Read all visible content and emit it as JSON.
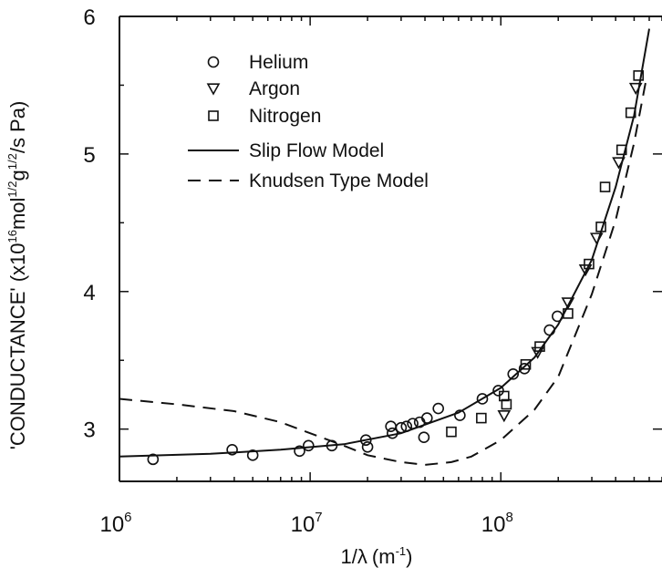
{
  "chart_data": {
    "type": "scatter",
    "xlabel": {
      "base": "1/λ",
      "unit": "(m",
      "unit_exp": "-1",
      "close": ")"
    },
    "ylabel": {
      "prefix": "'CONDUCTANCE' (x10",
      "exp1": "16",
      "part2": "mol",
      "exp2": "1/2",
      "part3": "g",
      "exp3": "1/2",
      "suffix": "/s Pa)"
    },
    "x_scale": "log",
    "xlim": [
      1000000,
      700000000
    ],
    "ylim": [
      2.62,
      6.0
    ],
    "x_ticks": [
      {
        "value": 1000000,
        "base": "10",
        "exp": "6"
      },
      {
        "value": 10000000,
        "base": "10",
        "exp": "7"
      },
      {
        "value": 100000000,
        "base": "10",
        "exp": "8"
      }
    ],
    "y_ticks": [
      {
        "value": 3,
        "label": "3"
      },
      {
        "value": 4,
        "label": "4"
      },
      {
        "value": 5,
        "label": "5"
      },
      {
        "value": 6,
        "label": "6"
      }
    ],
    "grid": false,
    "legend_position": "top-left",
    "series": [
      {
        "name": "Helium",
        "marker": "circle",
        "points": [
          [
            1500000,
            2.78
          ],
          [
            3900000,
            2.85
          ],
          [
            5000000,
            2.81
          ],
          [
            8800000,
            2.84
          ],
          [
            9800000,
            2.88
          ],
          [
            13000000,
            2.88
          ],
          [
            19600000,
            2.92
          ],
          [
            20000000,
            2.87
          ],
          [
            26500000,
            3.02
          ],
          [
            27000000,
            2.97
          ],
          [
            30000000,
            3.01
          ],
          [
            32000000,
            3.02
          ],
          [
            34500000,
            3.04
          ],
          [
            37500000,
            3.05
          ],
          [
            39500000,
            2.94
          ],
          [
            41000000,
            3.08
          ],
          [
            47000000,
            3.15
          ],
          [
            61000000,
            3.1
          ],
          [
            80000000,
            3.22
          ],
          [
            97000000,
            3.28
          ],
          [
            116000000,
            3.4
          ],
          [
            133000000,
            3.44
          ],
          [
            180000000,
            3.72
          ],
          [
            198000000,
            3.82
          ]
        ]
      },
      {
        "name": "Argon",
        "marker": "triangle-down",
        "points": [
          [
            104000000,
            3.1
          ],
          [
            156000000,
            3.56
          ],
          [
            225000000,
            3.92
          ],
          [
            278000000,
            4.16
          ],
          [
            318000000,
            4.39
          ],
          [
            415000000,
            4.94
          ],
          [
            510000000,
            5.48
          ]
        ]
      },
      {
        "name": "Nitrogen",
        "marker": "square",
        "points": [
          [
            55000000,
            2.98
          ],
          [
            79000000,
            3.08
          ],
          [
            104000000,
            3.24
          ],
          [
            107000000,
            3.18
          ],
          [
            135000000,
            3.47
          ],
          [
            160000000,
            3.6
          ],
          [
            225000000,
            3.84
          ],
          [
            290000000,
            4.2
          ],
          [
            335000000,
            4.47
          ],
          [
            352000000,
            4.76
          ],
          [
            430000000,
            5.03
          ],
          [
            480000000,
            5.3
          ],
          [
            527000000,
            5.57
          ]
        ]
      },
      {
        "name": "Slip Flow Model",
        "line": "solid",
        "points": [
          [
            1000000,
            2.8
          ],
          [
            3000000,
            2.82
          ],
          [
            7000000,
            2.85
          ],
          [
            15000000,
            2.89
          ],
          [
            30000000,
            2.97
          ],
          [
            60000000,
            3.12
          ],
          [
            100000000,
            3.3
          ],
          [
            150000000,
            3.52
          ],
          [
            200000000,
            3.76
          ],
          [
            300000000,
            4.23
          ],
          [
            400000000,
            4.76
          ],
          [
            500000000,
            5.28
          ],
          [
            600000000,
            5.91
          ]
        ]
      },
      {
        "name": "Knudsen Type Model",
        "line": "dashed",
        "points": [
          [
            1000000,
            3.22
          ],
          [
            2000000,
            3.18
          ],
          [
            4000000,
            3.13
          ],
          [
            7000000,
            3.05
          ],
          [
            10000000,
            2.97
          ],
          [
            15000000,
            2.88
          ],
          [
            20000000,
            2.81
          ],
          [
            30000000,
            2.76
          ],
          [
            40000000,
            2.74
          ],
          [
            55000000,
            2.76
          ],
          [
            70000000,
            2.8
          ],
          [
            100000000,
            2.92
          ],
          [
            150000000,
            3.14
          ],
          [
            200000000,
            3.38
          ],
          [
            300000000,
            3.98
          ],
          [
            400000000,
            4.52
          ],
          [
            500000000,
            5.08
          ],
          [
            580000000,
            5.55
          ]
        ]
      }
    ]
  }
}
